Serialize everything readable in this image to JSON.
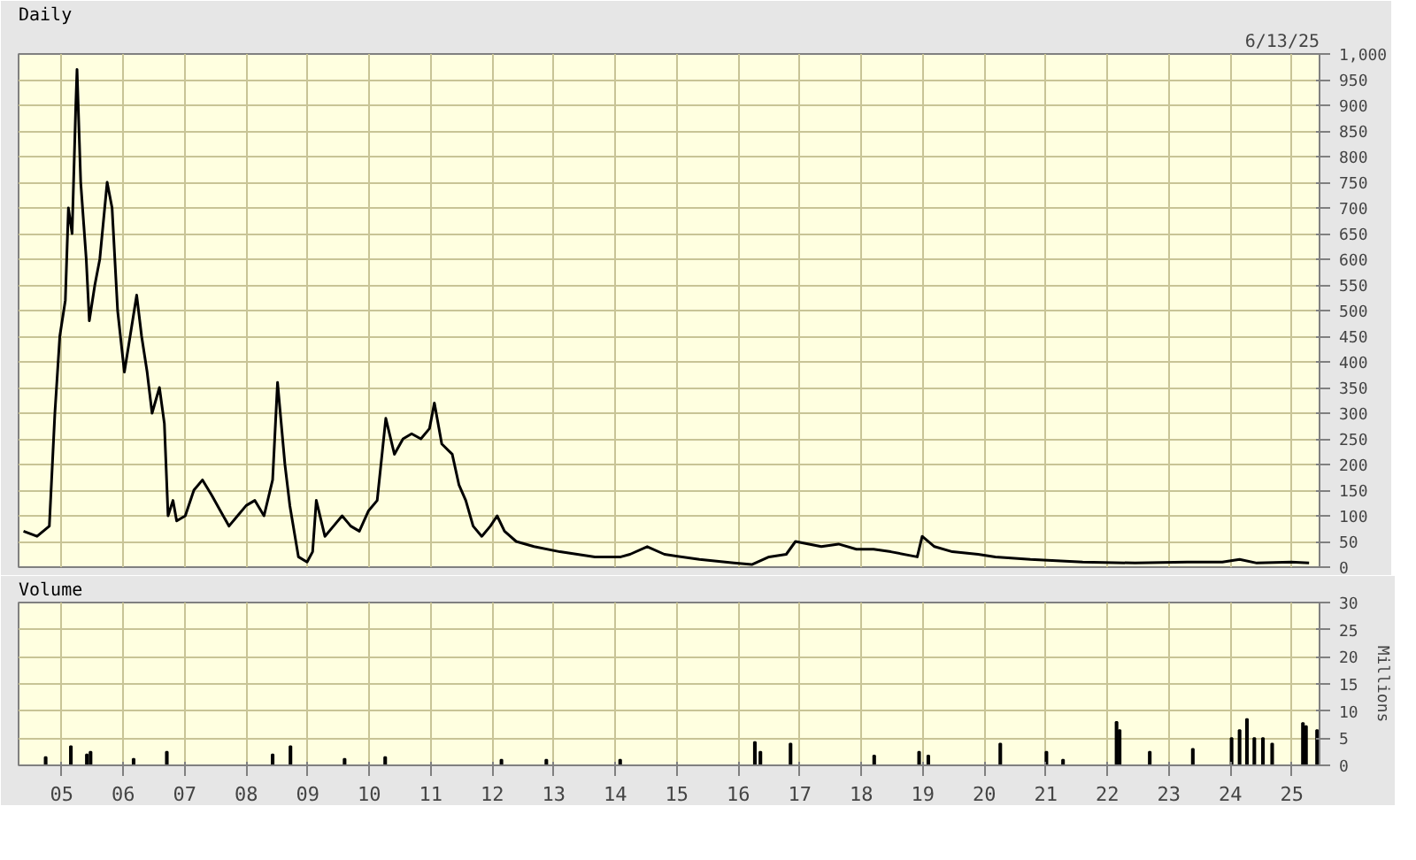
{
  "chart_data": [
    {
      "type": "line",
      "annotations": [
        "6/13/25"
      ],
      "grid": true,
      "tick_labels": "y",
      "xlim": [
        2004.3,
        2025.45
      ],
      "xticks": [
        {
          "value": 2005,
          "label": null
        },
        {
          "value": 2006,
          "label": null
        },
        {
          "value": 2007,
          "label": null
        },
        {
          "value": 2008,
          "label": null
        },
        {
          "value": 2009,
          "label": null
        },
        {
          "value": 2010,
          "label": null
        },
        {
          "value": 2011,
          "label": null
        },
        {
          "value": 2012,
          "label": null
        },
        {
          "value": 2013,
          "label": null
        },
        {
          "value": 2014,
          "label": null
        },
        {
          "value": 2015,
          "label": null
        },
        {
          "value": 2016,
          "label": null
        },
        {
          "value": 2017,
          "label": null
        },
        {
          "value": 2018,
          "label": null
        },
        {
          "value": 2019,
          "label": null
        },
        {
          "value": 2020,
          "label": null
        },
        {
          "value": 2021,
          "label": null
        },
        {
          "value": 2022,
          "label": null
        },
        {
          "value": 2023,
          "label": null
        },
        {
          "value": 2024,
          "label": null
        },
        {
          "value": 2025,
          "label": null
        }
      ],
      "ylim": [
        0,
        1000
      ],
      "yticks": [
        0,
        50,
        100,
        150,
        200,
        250,
        300,
        350,
        400,
        450,
        500,
        550,
        600,
        650,
        700,
        750,
        800,
        850,
        900,
        950,
        {
          "value": 1000,
          "label": "1,000"
        }
      ],
      "x": [
        2004.38,
        2004.6,
        2004.8,
        2004.89,
        2004.97,
        2005.06,
        2005.11,
        2005.17,
        2005.23,
        2005.25,
        2005.31,
        2005.4,
        2005.45,
        2005.54,
        2005.62,
        2005.74,
        2005.82,
        2005.91,
        2006.02,
        2006.1,
        2006.22,
        2006.3,
        2006.39,
        2006.47,
        2006.59,
        2006.67,
        2006.73,
        2006.81,
        2006.87,
        2007.01,
        2007.15,
        2007.29,
        2007.44,
        2007.58,
        2007.72,
        2007.86,
        2008.0,
        2008.14,
        2008.29,
        2008.43,
        2008.51,
        2008.63,
        2008.71,
        2008.85,
        2008.99,
        2009.08,
        2009.14,
        2009.28,
        2009.42,
        2009.56,
        2009.7,
        2009.84,
        2009.99,
        2010.13,
        2010.27,
        2010.41,
        2010.55,
        2010.69,
        2010.84,
        2010.98,
        2011.06,
        2011.18,
        2011.35,
        2011.46,
        2011.57,
        2011.69,
        2011.83,
        2011.97,
        2012.08,
        2012.2,
        2012.39,
        2012.68,
        2013.1,
        2013.67,
        2014.09,
        2014.24,
        2014.52,
        2014.8,
        2015.37,
        2015.93,
        2016.22,
        2016.5,
        2016.78,
        2016.93,
        2017.35,
        2017.63,
        2017.92,
        2018.2,
        2018.48,
        2018.91,
        2018.99,
        2019.19,
        2019.48,
        2019.9,
        2020.18,
        2020.75,
        2021.6,
        2022.45,
        2023.3,
        2023.87,
        2024.15,
        2024.43,
        2024.99,
        2025.28
      ],
      "series": [
        {
          "name": "Daily",
          "color": "#000000",
          "values": [
            70,
            60,
            80,
            300,
            450,
            520,
            700,
            650,
            900,
            970,
            750,
            600,
            480,
            550,
            600,
            750,
            700,
            500,
            380,
            440,
            530,
            450,
            380,
            300,
            350,
            280,
            100,
            130,
            90,
            100,
            150,
            170,
            140,
            110,
            80,
            100,
            120,
            130,
            100,
            170,
            360,
            200,
            120,
            20,
            10,
            30,
            130,
            60,
            80,
            100,
            80,
            70,
            110,
            130,
            290,
            220,
            250,
            260,
            250,
            270,
            320,
            240,
            220,
            160,
            130,
            80,
            60,
            80,
            100,
            70,
            50,
            40,
            30,
            20,
            20,
            25,
            40,
            25,
            15,
            8,
            5,
            20,
            25,
            50,
            40,
            45,
            35,
            35,
            30,
            20,
            60,
            40,
            30,
            25,
            20,
            15,
            10,
            8,
            10,
            10,
            15,
            8,
            10,
            8
          ]
        }
      ]
    },
    {
      "type": "bar",
      "grid": true,
      "ylabel": "Millions",
      "xlim": [
        2004.3,
        2025.45
      ],
      "xticks": [
        {
          "value": 2005,
          "label": "05"
        },
        {
          "value": 2006,
          "label": "06"
        },
        {
          "value": 2007,
          "label": "07"
        },
        {
          "value": 2008,
          "label": "08"
        },
        {
          "value": 2009,
          "label": "09"
        },
        {
          "value": 2010,
          "label": "10"
        },
        {
          "value": 2011,
          "label": "11"
        },
        {
          "value": 2012,
          "label": "12"
        },
        {
          "value": 2013,
          "label": "13"
        },
        {
          "value": 2014,
          "label": "14"
        },
        {
          "value": 2015,
          "label": "15"
        },
        {
          "value": 2016,
          "label": "16"
        },
        {
          "value": 2017,
          "label": "17"
        },
        {
          "value": 2018,
          "label": "18"
        },
        {
          "value": 2019,
          "label": "19"
        },
        {
          "value": 2020,
          "label": "20"
        },
        {
          "value": 2021,
          "label": "21"
        },
        {
          "value": 2022,
          "label": "22"
        },
        {
          "value": 2023,
          "label": "23"
        },
        {
          "value": 2024,
          "label": "24"
        },
        {
          "value": 2025,
          "label": "25"
        }
      ],
      "ylim": [
        0,
        30
      ],
      "yticks": [
        0,
        5,
        10,
        15,
        20,
        25,
        30
      ],
      "x": [
        2004.74,
        2005.15,
        2005.41,
        2005.47,
        2006.17,
        2006.71,
        2008.43,
        2008.72,
        2009.6,
        2010.26,
        2012.15,
        2012.88,
        2014.08,
        2016.27,
        2016.36,
        2016.85,
        2018.21,
        2018.94,
        2019.09,
        2020.26,
        2021.01,
        2021.28,
        2022.15,
        2022.2,
        2022.69,
        2023.39,
        2024.02,
        2024.15,
        2024.27,
        2024.39,
        2024.53,
        2024.68,
        2025.18,
        2025.23,
        2025.41
      ],
      "series": [
        {
          "name": "Volume",
          "color": "#000000",
          "values": [
            1.5,
            3.5,
            2,
            2.5,
            1.2,
            2.5,
            2,
            3.5,
            1.2,
            1.5,
            1,
            1,
            1,
            4.3,
            2.5,
            4,
            1.8,
            2.5,
            1.8,
            4,
            2.5,
            1,
            8,
            6.5,
            2.5,
            3,
            5,
            6.5,
            8.5,
            5,
            5,
            4,
            7.8,
            7.2,
            6.5
          ]
        }
      ]
    }
  ]
}
